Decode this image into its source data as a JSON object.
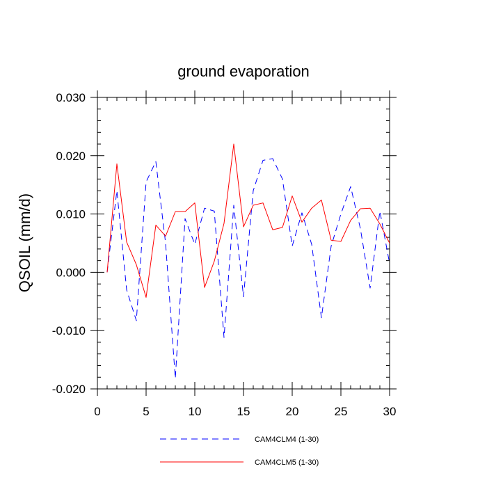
{
  "chart_data": {
    "type": "line",
    "title": "ground evaporation",
    "xlabel": "",
    "ylabel": "QSOIL  (mm/d)",
    "xlim": [
      0,
      30
    ],
    "ylim": [
      -0.02,
      0.03
    ],
    "x_ticks": [
      0,
      5,
      10,
      15,
      20,
      25,
      30
    ],
    "x_tick_labels": [
      "0",
      "5",
      "10",
      "15",
      "20",
      "25",
      "30"
    ],
    "y_ticks": [
      -0.02,
      -0.01,
      0.0,
      0.01,
      0.02,
      0.03
    ],
    "y_tick_labels": [
      "-0.020",
      "-0.010",
      "0.000",
      "0.010",
      "0.020",
      "0.030"
    ],
    "grid": false,
    "legend_position": "bottom-center",
    "x": [
      1,
      2,
      3,
      4,
      5,
      6,
      7,
      8,
      9,
      10,
      11,
      12,
      13,
      14,
      15,
      16,
      17,
      18,
      19,
      20,
      21,
      22,
      23,
      24,
      25,
      26,
      27,
      28,
      29,
      30
    ],
    "series": [
      {
        "name": "CAM4CLM4 (1-30)",
        "color": "#0000ff",
        "style": "dashed",
        "values": [
          0.0,
          0.014,
          -0.003,
          -0.0083,
          0.0155,
          0.019,
          0.005,
          -0.0182,
          0.0092,
          0.0048,
          0.011,
          0.0105,
          -0.0112,
          0.0115,
          -0.0042,
          0.014,
          0.0192,
          0.0195,
          0.016,
          0.0045,
          0.0102,
          0.0048,
          -0.0078,
          0.0045,
          0.01,
          0.0147,
          0.0075,
          -0.0027,
          0.0105,
          0.0015
        ]
      },
      {
        "name": "CAM4CLM5 (1-30)",
        "color": "#ff0000",
        "style": "solid",
        "values": [
          0.0,
          0.0186,
          0.0052,
          0.0013,
          -0.0043,
          0.0081,
          0.0062,
          0.0104,
          0.0104,
          0.0119,
          -0.0026,
          0.0019,
          0.0084,
          0.022,
          0.0078,
          0.0115,
          0.0119,
          0.0073,
          0.0077,
          0.0131,
          0.0086,
          0.011,
          0.0124,
          0.0055,
          0.0053,
          0.0089,
          0.0109,
          0.011,
          0.0083,
          0.005
        ]
      }
    ]
  }
}
